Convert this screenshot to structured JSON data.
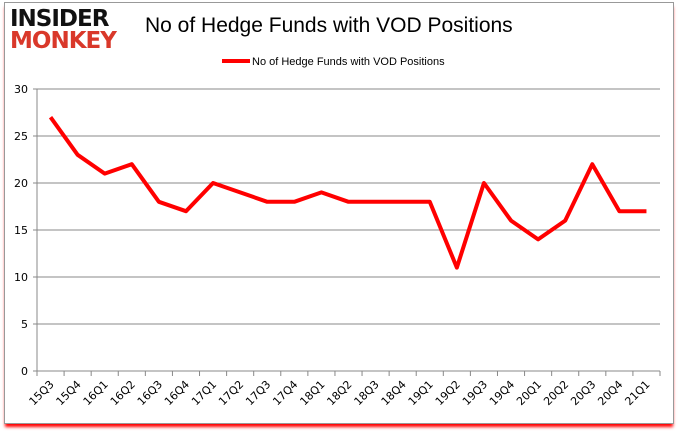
{
  "logo": {
    "line1": "INSIDER",
    "line2": "MONKEY"
  },
  "chart_data": {
    "type": "line",
    "title": "No of Hedge Funds with VOD Positions",
    "categories": [
      "15Q3",
      "15Q4",
      "16Q1",
      "16Q2",
      "16Q3",
      "16Q4",
      "17Q1",
      "17Q2",
      "17Q3",
      "17Q4",
      "18Q1",
      "18Q2",
      "18Q3",
      "18Q4",
      "19Q1",
      "19Q2",
      "19Q3",
      "19Q4",
      "20Q1",
      "20Q2",
      "20Q3",
      "20Q4",
      "21Q1"
    ],
    "series": [
      {
        "name": "No of Hedge Funds with VOD Positions",
        "color": "#ff0000",
        "values": [
          27,
          23,
          21,
          22,
          18,
          17,
          20,
          19,
          18,
          18,
          19,
          18,
          18,
          18,
          18,
          11,
          20,
          16,
          14,
          16,
          22,
          17,
          17
        ]
      }
    ],
    "ylim": [
      0,
      30
    ],
    "yticks": [
      0,
      5,
      10,
      15,
      20,
      25,
      30
    ],
    "grid": true,
    "legend": "top-center"
  }
}
